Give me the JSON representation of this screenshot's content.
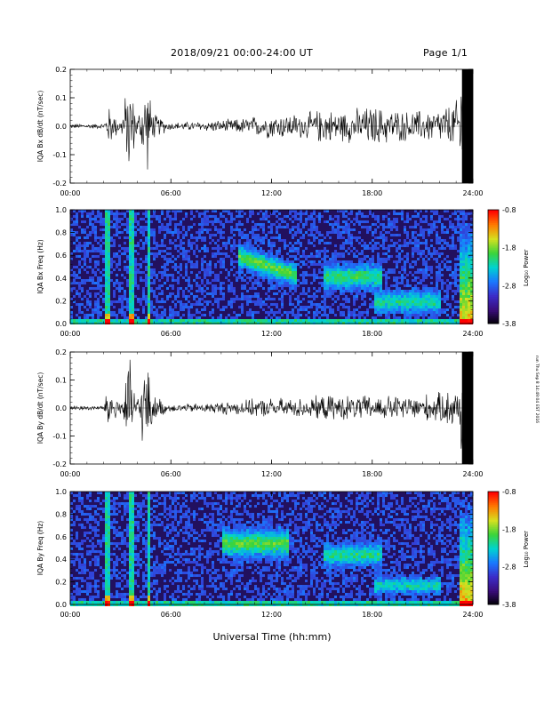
{
  "header": {
    "date_range": "2018/09/21  00:00-24:00 UT",
    "page": "Page 1/1"
  },
  "footer": {
    "xlabel": "Universal Time (hh:mm)",
    "credit": "run Thu Sep 8 14:49:04 EST 2016"
  },
  "colors": {
    "waveform": "#000000",
    "spectrogram_bg": "#22105e",
    "colormap": [
      "#000000",
      "#3a0d7a",
      "#3b2cc8",
      "#1a78ff",
      "#00d3d0",
      "#3ad43a",
      "#d5e020",
      "#ff7a00",
      "#ff0000"
    ]
  },
  "chart_data": [
    {
      "type": "line",
      "panel": "bx-waveform",
      "ylabel": "IQA Bx dB/dt (nT/sec)",
      "xlim": [
        0,
        24
      ],
      "ylim": [
        -0.2,
        0.2
      ],
      "yticks": [
        "0.2",
        "0.1",
        "0.0",
        "-0.1",
        "-0.2"
      ],
      "xticks": [
        "00:00",
        "06:00",
        "12:00",
        "18:00",
        "24:00"
      ],
      "envelope_hours": [
        0,
        2,
        2.3,
        3,
        3.5,
        4,
        4.5,
        5,
        6,
        8,
        10,
        12,
        14,
        15,
        16,
        18,
        20,
        22,
        23,
        23.3,
        24
      ],
      "envelope_amplitude": [
        0.01,
        0.01,
        0.08,
        0.02,
        0.2,
        0.03,
        0.2,
        0.05,
        0.015,
        0.02,
        0.03,
        0.05,
        0.05,
        0.07,
        0.06,
        0.08,
        0.06,
        0.07,
        0.1,
        0.2,
        0.2
      ]
    },
    {
      "type": "heatmap",
      "panel": "bx-spectrogram",
      "ylabel": "IQA Bx Freq (Hz)",
      "xlim": [
        0,
        24
      ],
      "ylim": [
        0.0,
        1.0
      ],
      "yticks": [
        "1.0",
        "0.8",
        "0.6",
        "0.4",
        "0.2",
        "0.0"
      ],
      "xticks": [
        "00:00",
        "06:00",
        "12:00",
        "18:00",
        "24:00"
      ],
      "colorbar": {
        "label": "Log₁₀ Power",
        "ticks": [
          "-0.8",
          "-1.8",
          "-2.8",
          "-3.8"
        ],
        "range": [
          -3.8,
          -0.8
        ]
      }
    },
    {
      "type": "line",
      "panel": "by-waveform",
      "ylabel": "IQA By dB/dt (nT/sec)",
      "xlim": [
        0,
        24
      ],
      "ylim": [
        -0.2,
        0.2
      ],
      "yticks": [
        "0.2",
        "0.1",
        "0.0",
        "-0.1",
        "-0.2"
      ],
      "xticks": [
        "00:00",
        "06:00",
        "12:00",
        "18:00",
        "24:00"
      ],
      "envelope_hours": [
        0,
        2,
        2.3,
        3,
        3.5,
        4,
        4.5,
        5,
        6,
        8,
        10,
        12,
        14,
        15,
        16,
        18,
        20,
        22,
        23,
        23.3,
        24
      ],
      "envelope_amplitude": [
        0.01,
        0.01,
        0.1,
        0.03,
        0.2,
        0.04,
        0.2,
        0.05,
        0.015,
        0.02,
        0.03,
        0.04,
        0.04,
        0.05,
        0.05,
        0.05,
        0.05,
        0.06,
        0.09,
        0.2,
        0.2
      ]
    },
    {
      "type": "heatmap",
      "panel": "by-spectrogram",
      "ylabel": "IQA By Freq (Hz)",
      "xlim": [
        0,
        24
      ],
      "ylim": [
        0.0,
        1.0
      ],
      "yticks": [
        "1.0",
        "0.8",
        "0.6",
        "0.4",
        "0.2",
        "0.0"
      ],
      "xticks": [
        "00:00",
        "06:00",
        "12:00",
        "18:00",
        "24:00"
      ],
      "colorbar": {
        "label": "Log₁₀ Power",
        "ticks": [
          "-0.8",
          "-1.8",
          "-2.8",
          "-3.8"
        ],
        "range": [
          -3.8,
          -0.8
        ]
      }
    }
  ]
}
